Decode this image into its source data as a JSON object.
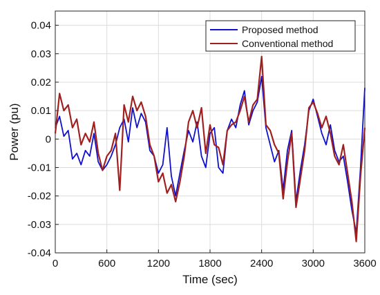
{
  "chart_data": {
    "type": "line",
    "xlabel": "Time (sec)",
    "ylabel": "Power (pu)",
    "xlim": [
      0,
      3600
    ],
    "ylim": [
      -0.04,
      0.045
    ],
    "x_ticks": [
      0,
      600,
      1200,
      1800,
      2400,
      3000,
      3600
    ],
    "y_ticks": [
      -0.04,
      -0.03,
      -0.02,
      -0.01,
      0,
      0.01,
      0.02,
      0.03,
      0.04
    ],
    "x_tick_labels": [
      "0",
      "600",
      "1200",
      "1800",
      "2400",
      "3000",
      "3600"
    ],
    "y_tick_labels": [
      "-0.04",
      "-0.03",
      "-0.02",
      "-0.01",
      "0",
      "0.01",
      "0.02",
      "0.03",
      "0.04"
    ],
    "grid": true,
    "legend_position": "top-right",
    "series": [
      {
        "name": "Proposed method",
        "color": "#1010cc",
        "x": [
          0,
          50,
          100,
          150,
          200,
          250,
          300,
          350,
          400,
          450,
          500,
          550,
          600,
          650,
          700,
          750,
          800,
          850,
          900,
          950,
          1000,
          1050,
          1100,
          1150,
          1200,
          1250,
          1300,
          1350,
          1400,
          1450,
          1500,
          1550,
          1600,
          1650,
          1700,
          1750,
          1800,
          1850,
          1900,
          1950,
          2000,
          2050,
          2100,
          2150,
          2200,
          2250,
          2300,
          2350,
          2400,
          2450,
          2500,
          2550,
          2600,
          2650,
          2700,
          2750,
          2800,
          2850,
          2900,
          2950,
          3000,
          3050,
          3100,
          3150,
          3200,
          3250,
          3300,
          3350,
          3400,
          3450,
          3500,
          3550,
          3600
        ],
        "y": [
          0.004,
          0.008,
          0.001,
          0.003,
          -0.007,
          -0.005,
          -0.009,
          -0.004,
          -0.006,
          0.002,
          -0.008,
          -0.011,
          -0.009,
          -0.006,
          -0.002,
          0.004,
          0.007,
          -0.001,
          0.011,
          0.004,
          0.009,
          0.006,
          -0.004,
          -0.006,
          -0.012,
          -0.009,
          0.004,
          -0.013,
          -0.02,
          -0.012,
          -0.004,
          0.003,
          -0.001,
          0.006,
          -0.006,
          -0.01,
          0.002,
          0.004,
          -0.01,
          -0.012,
          0.003,
          0.007,
          0.004,
          0.012,
          0.017,
          0.005,
          0.01,
          0.013,
          0.022,
          0.004,
          -0.002,
          -0.008,
          -0.004,
          -0.018,
          -0.004,
          0.003,
          -0.022,
          -0.011,
          -0.002,
          0.01,
          0.014,
          0.008,
          0.002,
          -0.002,
          0.005,
          -0.004,
          -0.008,
          -0.006,
          -0.015,
          -0.025,
          -0.033,
          -0.01,
          0.018
        ]
      },
      {
        "name": "Conventional method",
        "color": "#a02020",
        "x": [
          0,
          50,
          100,
          150,
          200,
          250,
          300,
          350,
          400,
          450,
          500,
          550,
          600,
          650,
          700,
          750,
          800,
          850,
          900,
          950,
          1000,
          1050,
          1100,
          1150,
          1200,
          1250,
          1300,
          1350,
          1400,
          1450,
          1500,
          1550,
          1600,
          1650,
          1700,
          1750,
          1800,
          1850,
          1900,
          1950,
          2000,
          2050,
          2100,
          2150,
          2200,
          2250,
          2300,
          2350,
          2400,
          2450,
          2500,
          2550,
          2600,
          2650,
          2700,
          2750,
          2800,
          2850,
          2900,
          2950,
          3000,
          3050,
          3100,
          3150,
          3200,
          3250,
          3300,
          3350,
          3400,
          3450,
          3500,
          3550,
          3600
        ],
        "y": [
          0.002,
          0.016,
          0.01,
          0.012,
          0.004,
          0.007,
          -0.002,
          0.002,
          -0.001,
          0.006,
          -0.005,
          -0.011,
          -0.006,
          -0.004,
          0.002,
          -0.018,
          0.012,
          0.006,
          0.015,
          0.01,
          0.013,
          0.008,
          -0.002,
          -0.006,
          -0.015,
          -0.012,
          -0.019,
          -0.016,
          -0.022,
          -0.015,
          -0.006,
          0.006,
          0.01,
          0.004,
          0.011,
          -0.005,
          0.005,
          -0.002,
          -0.003,
          -0.009,
          0.003,
          0.005,
          0.006,
          0.01,
          0.015,
          0.006,
          0.012,
          0.014,
          0.029,
          0.005,
          0.003,
          -0.002,
          -0.005,
          -0.021,
          -0.008,
          0.002,
          -0.024,
          -0.014,
          -0.004,
          0.011,
          0.013,
          0.009,
          0.004,
          0.008,
          0.002,
          -0.006,
          -0.009,
          -0.002,
          -0.012,
          -0.022,
          -0.036,
          -0.013,
          0.004
        ]
      }
    ]
  }
}
